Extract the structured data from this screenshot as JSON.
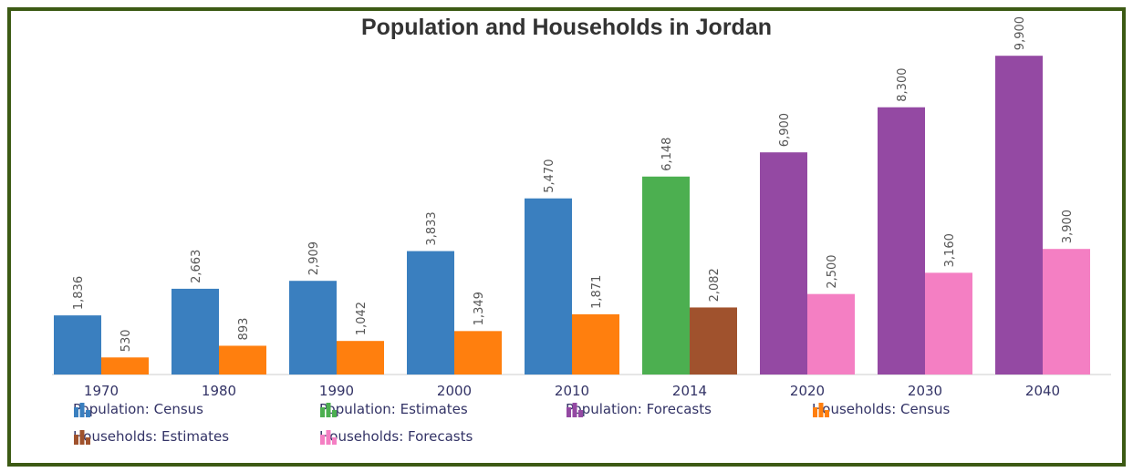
{
  "chart_data": {
    "type": "bar",
    "title": "Population and Households in Jordan",
    "categories": [
      "1970",
      "1980",
      "1990",
      "2000",
      "2010",
      "2014",
      "2020",
      "2030",
      "2040"
    ],
    "ylim": [
      0,
      10500
    ],
    "series": [
      {
        "name": "Population",
        "values": [
          1836,
          2663,
          2909,
          3833,
          5470,
          6148,
          6900,
          8300,
          9900
        ],
        "labels": [
          "1,836",
          "2,663",
          "2,909",
          "3,833",
          "5,470",
          "6,148",
          "6,900",
          "8,300",
          "9,900"
        ],
        "colors": [
          "#3a7fbf",
          "#3a7fbf",
          "#3a7fbf",
          "#3a7fbf",
          "#3a7fbf",
          "#4caf50",
          "#9449a3",
          "#9449a3",
          "#9449a3"
        ]
      },
      {
        "name": "Households",
        "values": [
          530,
          893,
          1042,
          1349,
          1871,
          2082,
          2500,
          3160,
          3900
        ],
        "labels": [
          "530",
          "893",
          "1,042",
          "1,349",
          "1,871",
          "2,082",
          "2,500",
          "3,160",
          "3,900"
        ],
        "colors": [
          "#ff7f0e",
          "#ff7f0e",
          "#ff7f0e",
          "#ff7f0e",
          "#ff7f0e",
          "#a0522d",
          "#f47fc3",
          "#f47fc3",
          "#f47fc3"
        ]
      }
    ],
    "legend": [
      {
        "label": "Population: Census",
        "color": "#3a7fbf"
      },
      {
        "label": "Population: Estimates",
        "color": "#4caf50"
      },
      {
        "label": "Population: Forecasts",
        "color": "#9449a3"
      },
      {
        "label": "Households: Census",
        "color": "#ff7f0e"
      },
      {
        "label": "Households: Estimates",
        "color": "#a0522d"
      },
      {
        "label": "Households: Forecasts",
        "color": "#f47fc3"
      }
    ],
    "legend_placement": "bottom",
    "grid": false
  },
  "frame_color": "#3c5a14"
}
